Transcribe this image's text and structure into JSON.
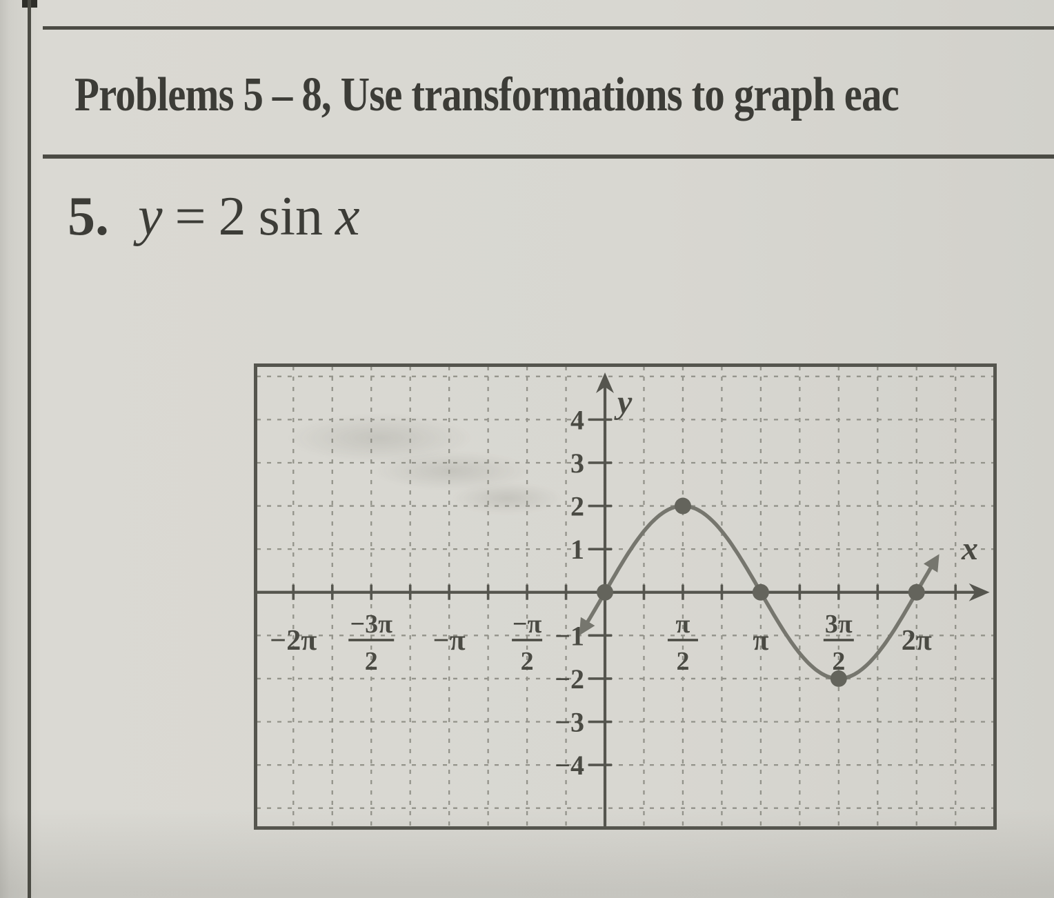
{
  "header": {
    "text": "Problems 5 – 8, Use transformations to graph eac"
  },
  "problem": {
    "number": "5.",
    "equation": {
      "lhs": "y",
      "rel": "=",
      "coeff": "2",
      "func": "sin",
      "var": "x"
    }
  },
  "icons": {
    "x-axis-arrowhead": "►",
    "y-axis-arrowhead": "▲",
    "curve-arrowhead": "➤"
  },
  "chart_data": {
    "type": "line",
    "equation": "y = 2 sin x",
    "xlabel": "x",
    "ylabel": "y",
    "amplitude": 2,
    "period": "2π",
    "grid": "on",
    "xlim_rad": [
      -7.08,
      7.9
    ],
    "ylim": [
      -5.5,
      5.3
    ],
    "x_grid_step_rad": 0.7853981634,
    "y_grid_step": 1,
    "x_tick_labels": [
      {
        "v": -6.2832,
        "label": "−2π"
      },
      {
        "v": -4.7124,
        "label": "−3π/2"
      },
      {
        "v": -3.1416,
        "label": "−π"
      },
      {
        "v": -1.5708,
        "label": "−π/2"
      },
      {
        "v": 1.5708,
        "label": "π/2"
      },
      {
        "v": 3.1416,
        "label": "π"
      },
      {
        "v": 4.7124,
        "label": "3π/2"
      },
      {
        "v": 6.2832,
        "label": "2π"
      }
    ],
    "y_tick_labels": [
      4,
      3,
      2,
      1,
      -1,
      -2,
      -3,
      -4
    ],
    "curve": {
      "function": "y = 2·sin(x)",
      "x_drawn": [
        -0.45,
        6.7
      ],
      "arrow_ends": true
    },
    "key_points": [
      [
        0,
        0
      ],
      [
        1.5708,
        2
      ],
      [
        3.1416,
        0
      ],
      [
        4.7124,
        -2
      ],
      [
        6.2832,
        0
      ]
    ],
    "styles": {
      "ink": "#55554e",
      "grid": "#87877e",
      "curve": "#76766e",
      "dot": "#64645c",
      "label_ink": "#4a4a43"
    }
  }
}
